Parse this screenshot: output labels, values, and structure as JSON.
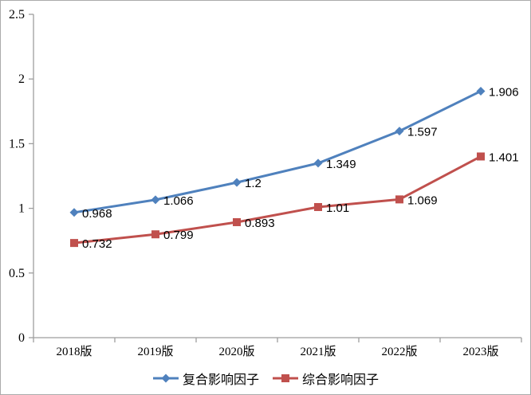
{
  "chart_data": {
    "type": "line",
    "title": "",
    "xlabel": "",
    "ylabel": "",
    "categories": [
      "2018版",
      "2019版",
      "2020版",
      "2021版",
      "2022版",
      "2023版"
    ],
    "series": [
      {
        "name": "复合影响因子",
        "marker": "diamond",
        "color": "#4F81BD",
        "values": [
          0.968,
          1.066,
          1.2,
          1.349,
          1.597,
          1.906
        ],
        "labels": [
          "0.968",
          "1.066",
          "1.2",
          "1.349",
          "1.597",
          "1.906"
        ]
      },
      {
        "name": "综合影响因子",
        "marker": "square",
        "color": "#C0504D",
        "values": [
          0.732,
          0.799,
          0.893,
          1.01,
          1.069,
          1.401
        ],
        "labels": [
          "0.732",
          "0.799",
          "0.893",
          "1.01",
          "1.069",
          "1.401"
        ]
      }
    ],
    "ylim": [
      0,
      2.5
    ],
    "y_ticks": [
      0,
      0.5,
      1,
      1.5,
      2,
      2.5
    ],
    "y_tick_labels": [
      "0",
      "0.5",
      "1",
      "1.5",
      "2",
      "2.5"
    ],
    "grid": false,
    "legend_position": "bottom",
    "axis_color": "#9E9E9E",
    "label_color": "#000000",
    "background": "#FFFFFF"
  }
}
